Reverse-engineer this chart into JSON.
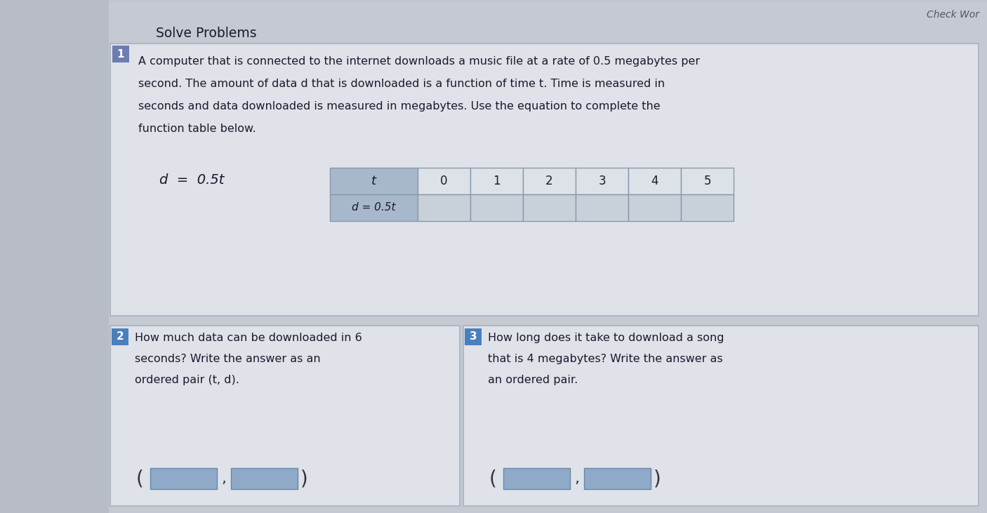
{
  "bg_color": "#c5c9d2",
  "left_panel_color": "#bcc0ca",
  "card_bg": "#e8eaed",
  "card_border": "#b0b8c4",
  "check_work_text": "Check Wor",
  "solve_problems_text": "Solve Problems",
  "p1_badge_color": "#6b7db3",
  "p1_badge_text": "1",
  "p1_line1": "A computer that is connected to the internet downloads a music file at a rate of 0.5 megabytes per",
  "p1_line2": "second. The amount of data d that is downloaded is a function of time t. Time is measured in",
  "p1_line3": "seconds and data downloaded is measured in megabytes. Use the equation to complete the",
  "p1_line4": "function table below.",
  "eq_text": "d  =  0.5t",
  "table_hdr_bg": "#a8b8cc",
  "table_data_bg": "#c8d0da",
  "table_border": "#8899aa",
  "t_values": [
    "0",
    "1",
    "2",
    "3",
    "4",
    "5"
  ],
  "p2_badge_color": "#4a7fbe",
  "p2_badge_text": "2",
  "p2_line1": "How much data can be downloaded in 6",
  "p2_line2": "seconds? Write the answer as an",
  "p2_line3": "ordered pair (t, d).",
  "p3_badge_color": "#4a7fbe",
  "p3_badge_text": "3",
  "p3_line1": "How long does it take to download a song",
  "p3_line2": "that is 4 megabytes? Write the answer as",
  "p3_line3": "an ordered pair.",
  "ans_box_color": "#8eaac8",
  "ans_box_border": "#6688aa",
  "text_color": "#1a1a2e",
  "text_color2": "#2a3a5a",
  "font_main": 11.5,
  "font_solve": 13.5,
  "font_eq": 14,
  "font_table": 12,
  "font_badge": 11,
  "font_check": 10
}
